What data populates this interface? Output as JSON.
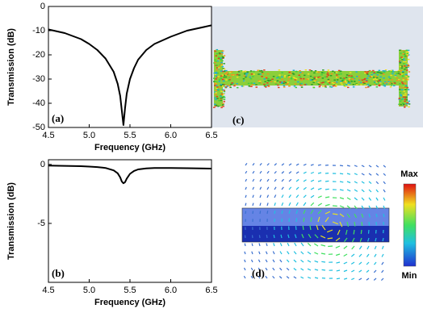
{
  "chart_data": [
    {
      "type": "line",
      "label": "(a)",
      "x_label": "Frequency (GHz)",
      "y_label": "Transmission (dB)",
      "x": [
        4.5,
        4.7,
        4.9,
        5.0,
        5.1,
        5.2,
        5.3,
        5.35,
        5.38,
        5.4,
        5.42,
        5.44,
        5.46,
        5.5,
        5.55,
        5.6,
        5.7,
        5.8,
        6.0,
        6.2,
        6.5
      ],
      "series": [
        {
          "color": "#000000",
          "values": [
            -9.5,
            -11,
            -13.5,
            -15.5,
            -18,
            -21.5,
            -27,
            -32,
            -37,
            -43,
            -49,
            -42,
            -36,
            -30,
            -25.5,
            -22,
            -18,
            -15.5,
            -12.5,
            -10,
            -7.8
          ]
        }
      ],
      "xlim": [
        4.5,
        6.5
      ],
      "xticks": [
        4.5,
        {
          "value": 5,
          "label": "5.0"
        },
        5.5,
        {
          "value": 6,
          "label": "6.0"
        },
        6.5
      ],
      "ylim": [
        -50,
        0
      ],
      "yticks": [
        0,
        -10,
        -20,
        -30,
        -40,
        -50
      ]
    },
    {
      "type": "line",
      "label": "(b)",
      "x_label": "Frequency (GHz)",
      "y_label": "Transmission (dB)",
      "x": [
        4.5,
        4.7,
        4.9,
        5.0,
        5.1,
        5.2,
        5.3,
        5.35,
        5.38,
        5.4,
        5.42,
        5.44,
        5.46,
        5.5,
        5.55,
        5.6,
        5.7,
        5.8,
        6.0,
        6.2,
        6.5
      ],
      "series": [
        {
          "color": "#000000",
          "values": [
            -0.1,
            -0.12,
            -0.15,
            -0.18,
            -0.22,
            -0.3,
            -0.5,
            -0.75,
            -1.1,
            -1.45,
            -1.6,
            -1.5,
            -1.2,
            -0.8,
            -0.55,
            -0.42,
            -0.33,
            -0.3,
            -0.3,
            -0.32,
            -0.35
          ]
        }
      ],
      "xlim": [
        4.5,
        6.5
      ],
      "xticks": [
        4.5,
        {
          "value": 5,
          "label": "5.0"
        },
        5.5,
        {
          "value": 6,
          "label": "6.0"
        },
        6.5
      ],
      "ylim": [
        -10,
        0.4
      ],
      "yticks": [
        0,
        -5
      ]
    }
  ],
  "panels": {
    "c": "(c)",
    "d": "(d)",
    "colorbar_max": "Max",
    "colorbar_min": "Min"
  }
}
